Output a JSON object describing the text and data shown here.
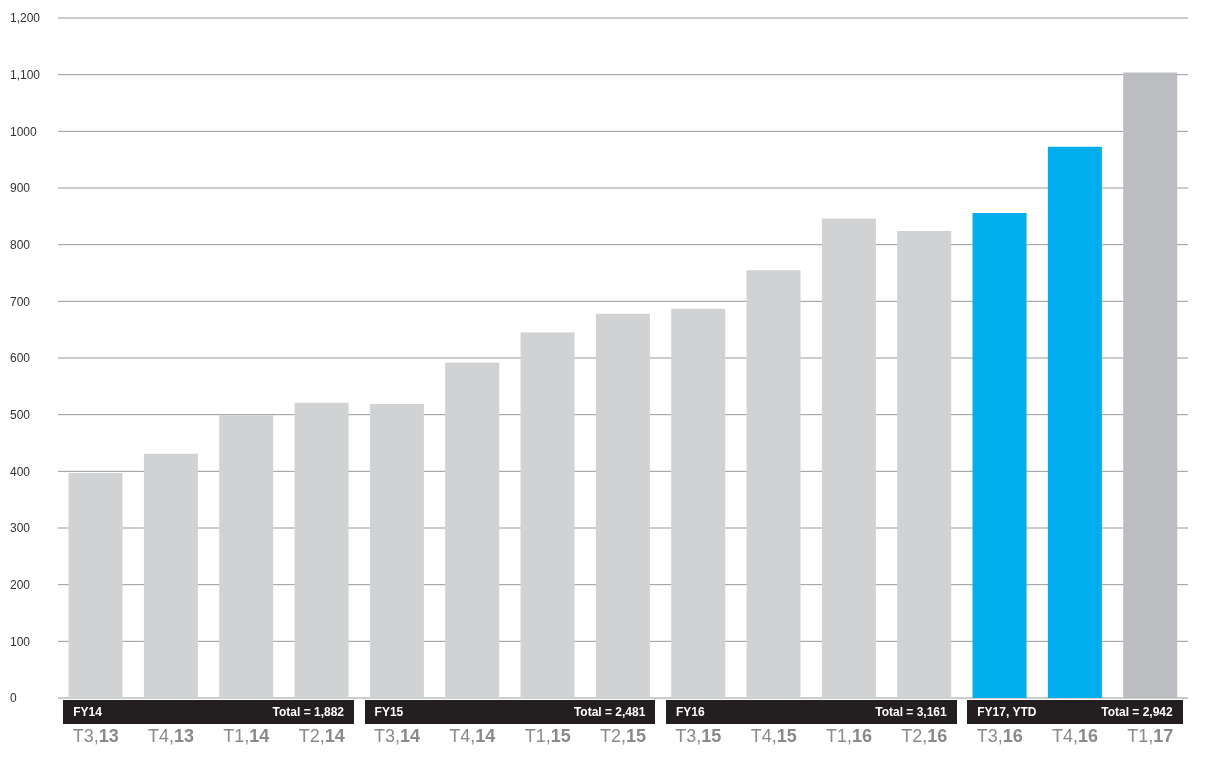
{
  "chart_data": {
    "type": "bar",
    "categories": [
      "T3,13",
      "T4,13",
      "T1,14",
      "T2,14",
      "T3,14",
      "T4,14",
      "T1,15",
      "T2,15",
      "T3,15",
      "T4,15",
      "T1,16",
      "T2,16",
      "T3,16",
      "T4,16",
      "T1,17"
    ],
    "values": [
      397,
      431,
      499,
      521,
      519,
      592,
      645,
      678,
      687,
      755,
      846,
      824,
      856,
      973,
      1104
    ],
    "colors": [
      "#d1d2d4",
      "#d1d2d4",
      "#d1d2d4",
      "#d1d2d4",
      "#d1d2d4",
      "#d1d2d4",
      "#d1d2d4",
      "#d1d2d4",
      "#d1d2d4",
      "#d1d2d4",
      "#d1d2d4",
      "#d1d2d4",
      "#00aeef",
      "#00aeef",
      "#bcbdc0"
    ],
    "ylim": [
      0,
      1200
    ],
    "yticks": [
      0,
      100,
      200,
      300,
      400,
      500,
      600,
      700,
      800,
      900,
      1000,
      {
        "value": 1100,
        "label": "1,100"
      },
      {
        "value": 1200,
        "label": "1,200"
      }
    ],
    "grid": "y",
    "annotations": [
      "FY14",
      "Total = 1,882",
      "FY15",
      "Total = 2,481",
      "FY16",
      "Total = 3,161",
      "FY17, YTD",
      "Total = 2,942"
    ]
  }
}
